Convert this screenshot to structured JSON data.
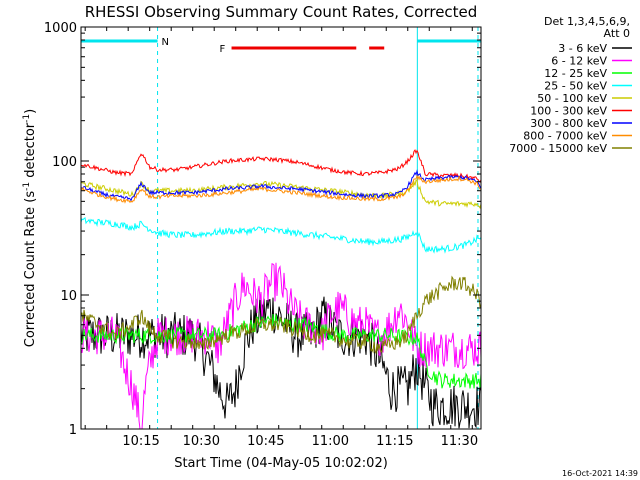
{
  "chart_data": {
    "type": "line",
    "title": "RHESSI Observing Summary Count Rates, Corrected",
    "xlabel": "Start Time (04-May-05 10:02:02)",
    "ylabel_main": "Corrected Count Rate (s",
    "ylabel_sup1": "-1",
    "ylabel_mid": " detector",
    "ylabel_sup2": "-1",
    "ylabel_end": ")",
    "yscale": "log",
    "ylim": [
      1,
      1000
    ],
    "xlim_minutes": [
      0,
      93
    ],
    "x_ticks": [
      {
        "t": 13.97,
        "label": "10:15"
      },
      {
        "t": 27.97,
        "label": "10:30"
      },
      {
        "t": 42.97,
        "label": "10:45"
      },
      {
        "t": 57.97,
        "label": "11:00"
      },
      {
        "t": 72.97,
        "label": "11:15"
      },
      {
        "t": 87.97,
        "label": "11:30"
      }
    ],
    "y_ticks": [
      {
        "v": 1,
        "label": "1"
      },
      {
        "v": 10,
        "label": "10"
      },
      {
        "v": 100,
        "label": "100"
      },
      {
        "v": 1000,
        "label": "1000"
      }
    ],
    "legend_header": [
      "Det 1,3,4,5,6,9,",
      "Att 0"
    ],
    "legend_position": "right",
    "series": [
      {
        "name": "3 - 6 keV",
        "color": "#000000",
        "x": [
          0,
          4,
          8,
          12,
          14,
          18,
          22,
          26,
          30,
          32,
          34,
          36,
          38,
          40,
          42,
          44,
          46,
          48,
          50,
          52,
          54,
          56,
          58,
          60,
          62,
          64,
          66,
          68,
          70,
          72,
          74,
          76,
          78,
          80,
          82,
          84,
          86,
          88,
          90,
          92,
          93
        ],
        "y": [
          5,
          5,
          5,
          5,
          5,
          5,
          5,
          5,
          3,
          2,
          1.5,
          2,
          4,
          6,
          7,
          8,
          7,
          6,
          5,
          5,
          5,
          7,
          6,
          5,
          5,
          5,
          5,
          4,
          3,
          2,
          2,
          2,
          3,
          2,
          1.5,
          1.5,
          1.5,
          1.5,
          1.5,
          1.5,
          1.5
        ]
      },
      {
        "name": "6 - 12 keV",
        "color": "#ff00ff",
        "x": [
          0,
          4,
          8,
          10,
          12,
          14,
          16,
          18,
          22,
          26,
          30,
          32,
          34,
          36,
          38,
          40,
          42,
          44,
          46,
          48,
          50,
          52,
          54,
          56,
          58,
          60,
          62,
          64,
          66,
          68,
          70,
          72,
          74,
          76,
          78,
          80,
          82,
          84,
          86,
          88,
          90,
          92,
          93
        ],
        "y": [
          5,
          5,
          5,
          3,
          2,
          1,
          3,
          5,
          5,
          5,
          5,
          4,
          6,
          9,
          12,
          10,
          9,
          12,
          13,
          9,
          7,
          6,
          6,
          5,
          7,
          8,
          7,
          6,
          6,
          5,
          5,
          6,
          8,
          6,
          4,
          4,
          4,
          4,
          4,
          4,
          4,
          4,
          4
        ]
      },
      {
        "name": "12 - 25 keV",
        "color": "#00ff00",
        "x": [
          0,
          4,
          8,
          12,
          14,
          16,
          20,
          24,
          28,
          32,
          36,
          40,
          44,
          48,
          52,
          56,
          60,
          64,
          68,
          72,
          76,
          78,
          80,
          82,
          84,
          86,
          88,
          90,
          92,
          93
        ],
        "y": [
          5,
          5,
          5,
          5,
          5,
          5,
          5,
          5,
          5,
          5,
          5.5,
          6,
          6.5,
          6,
          6,
          5.5,
          5,
          5,
          5,
          5,
          4.8,
          4.8,
          3,
          2.5,
          2.3,
          2.3,
          2.3,
          2.3,
          2.3,
          2.3
        ]
      },
      {
        "name": "25 - 50 keV",
        "color": "#00ffff",
        "x": [
          0,
          4,
          8,
          12,
          14,
          16,
          18,
          22,
          26,
          30,
          34,
          38,
          42,
          46,
          50,
          54,
          58,
          62,
          66,
          70,
          74,
          76,
          78,
          80,
          84,
          88,
          90,
          92,
          93
        ],
        "y": [
          36,
          35,
          34,
          32,
          34,
          31,
          29,
          28,
          28,
          29,
          30,
          30,
          31,
          30,
          29,
          28,
          27,
          26,
          25,
          25,
          26,
          27,
          30,
          22,
          22,
          23,
          24,
          26,
          27
        ]
      },
      {
        "name": "50 - 100 keV",
        "color": "#cccc00",
        "x": [
          0,
          4,
          8,
          12,
          14,
          16,
          18,
          22,
          26,
          30,
          34,
          38,
          42,
          46,
          50,
          54,
          58,
          62,
          66,
          70,
          74,
          76,
          78,
          80,
          84,
          88,
          90,
          92,
          93
        ],
        "y": [
          68,
          64,
          60,
          56,
          68,
          60,
          60,
          60,
          60,
          62,
          64,
          66,
          68,
          66,
          64,
          62,
          60,
          58,
          56,
          55,
          57,
          60,
          70,
          50,
          48,
          48,
          48,
          48,
          46
        ]
      },
      {
        "name": "100 - 300 keV",
        "color": "#ff0000",
        "x": [
          0,
          4,
          8,
          12,
          14,
          16,
          18,
          22,
          26,
          30,
          34,
          38,
          42,
          46,
          50,
          54,
          58,
          62,
          66,
          70,
          74,
          76,
          78,
          80,
          84,
          88,
          90,
          92,
          93
        ],
        "y": [
          95,
          88,
          82,
          80,
          115,
          90,
          86,
          86,
          90,
          95,
          100,
          102,
          104,
          102,
          98,
          92,
          86,
          82,
          80,
          82,
          88,
          100,
          120,
          80,
          78,
          78,
          76,
          74,
          70
        ]
      },
      {
        "name": "300 - 800 keV",
        "color": "#0000ff",
        "x": [
          0,
          4,
          8,
          12,
          14,
          16,
          18,
          22,
          26,
          30,
          34,
          38,
          42,
          46,
          50,
          54,
          58,
          62,
          66,
          70,
          74,
          76,
          78,
          80,
          84,
          88,
          90,
          92,
          93
        ],
        "y": [
          64,
          58,
          54,
          52,
          68,
          58,
          58,
          58,
          58,
          60,
          62,
          63,
          65,
          63,
          62,
          60,
          58,
          56,
          55,
          55,
          57,
          65,
          82,
          72,
          75,
          76,
          74,
          70,
          64
        ]
      },
      {
        "name": "800 - 7000 keV",
        "color": "#ff8c00",
        "x": [
          0,
          4,
          8,
          12,
          14,
          16,
          18,
          22,
          26,
          30,
          34,
          38,
          42,
          46,
          50,
          54,
          58,
          62,
          66,
          70,
          74,
          76,
          78,
          80,
          84,
          88,
          90,
          92,
          93
        ],
        "y": [
          62,
          56,
          52,
          50,
          62,
          54,
          54,
          55,
          55,
          56,
          58,
          60,
          62,
          60,
          58,
          56,
          54,
          53,
          52,
          52,
          54,
          60,
          76,
          70,
          72,
          74,
          72,
          68,
          62
        ]
      },
      {
        "name": "7000 - 15000 keV",
        "color": "#808000",
        "x": [
          0,
          4,
          8,
          12,
          14,
          16,
          18,
          22,
          26,
          28,
          30,
          34,
          38,
          42,
          46,
          50,
          54,
          58,
          62,
          66,
          70,
          74,
          76,
          78,
          80,
          84,
          86,
          88,
          90,
          92,
          93
        ],
        "y": [
          7,
          6,
          5,
          6,
          7,
          5.5,
          5,
          4.5,
          4.5,
          4,
          4.5,
          5,
          5.5,
          6,
          6,
          5.5,
          5,
          5,
          4.5,
          4.5,
          4,
          4.5,
          5,
          7,
          9,
          11,
          12,
          12.5,
          11.5,
          10,
          9
        ]
      }
    ],
    "flag_rows": [
      {
        "label": "N",
        "color": "#00e5ee",
        "segments": [
          [
            0,
            17.8
          ],
          [
            78.2,
            93
          ]
        ]
      },
      {
        "label": "F",
        "color": "#ee0000",
        "segments": [
          [
            35,
            64
          ],
          [
            67,
            70.5
          ]
        ]
      }
    ],
    "vlines": [
      {
        "t": 0,
        "color": "#00e5ee",
        "style": "solid"
      },
      {
        "t": 17.8,
        "color": "#00e5ee",
        "style": "dashed"
      },
      {
        "t": 78.2,
        "color": "#00e5ee",
        "style": "solid"
      },
      {
        "t": 92.3,
        "color": "#00e5ee",
        "style": "dashed"
      }
    ]
  },
  "footer_date": "16-Oct-2021 14:39"
}
